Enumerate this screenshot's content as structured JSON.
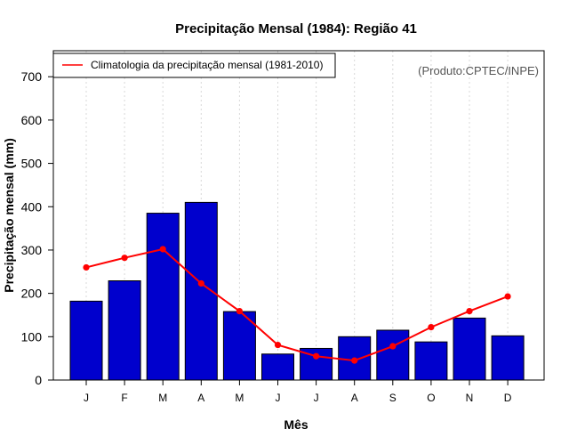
{
  "chart_data": {
    "type": "bar",
    "title": "Precipitação Mensal (1984): Região 41",
    "xlabel": "Mês",
    "ylabel": "Precipitação mensal (mm)",
    "categories": [
      "J",
      "F",
      "M",
      "A",
      "M",
      "J",
      "J",
      "A",
      "S",
      "O",
      "N",
      "D"
    ],
    "ylim": [
      0,
      760
    ],
    "yticks": [
      0,
      100,
      200,
      300,
      400,
      500,
      600,
      700
    ],
    "grid": "vertical dotted",
    "series": [
      {
        "name": "Precipitação mensal (1984)",
        "kind": "bar",
        "color": "#0000CD",
        "values": [
          182,
          229,
          385,
          410,
          158,
          60,
          73,
          100,
          115,
          88,
          143,
          102
        ]
      },
      {
        "name": "Climatologia da precipitação mensal (1981-2010)",
        "kind": "line",
        "color": "#FF0000",
        "values": [
          260,
          282,
          302,
          223,
          159,
          81,
          55,
          45,
          78,
          122,
          159,
          193
        ]
      }
    ],
    "legend": {
      "position": "top-left",
      "entries": [
        "Climatologia da precipitação mensal (1981-2010)"
      ]
    },
    "annotation": "(Produto:CPTEC/INPE)"
  }
}
